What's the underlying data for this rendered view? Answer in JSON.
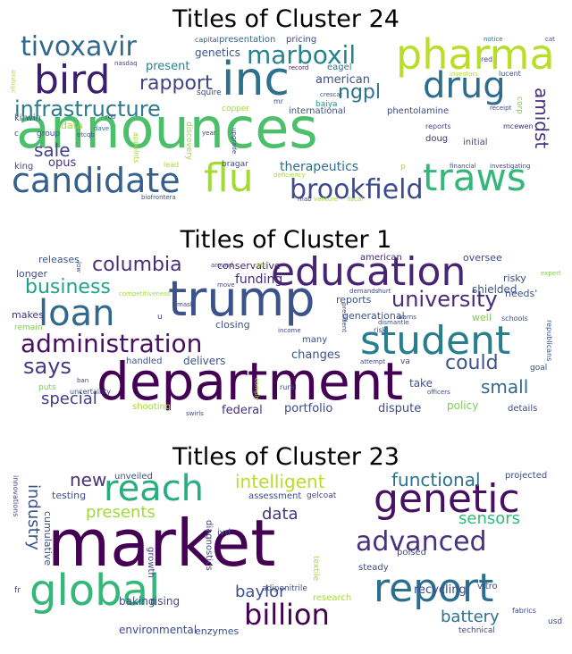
{
  "clouds": [
    {
      "title": "Titles of Cluster 24",
      "words": [
        {
          "text": "announces",
          "size": 62,
          "color": "#4cbf6b"
        },
        {
          "text": "inc",
          "size": 52,
          "color": "#2d708e"
        },
        {
          "text": "pharma",
          "size": 46,
          "color": "#b8de29"
        },
        {
          "text": "bird",
          "size": 44,
          "color": "#3b1f6c"
        },
        {
          "text": "drug",
          "size": 40,
          "color": "#2e6d8e"
        },
        {
          "text": "traws",
          "size": 42,
          "color": "#35b779"
        },
        {
          "text": "candidate",
          "size": 38,
          "color": "#34608d"
        },
        {
          "text": "flu",
          "size": 44,
          "color": "#a2da37"
        },
        {
          "text": "brookfield",
          "size": 30,
          "color": "#3e4a89"
        },
        {
          "text": "tivoxavir",
          "size": 30,
          "color": "#31688e"
        },
        {
          "text": "marboxil",
          "size": 28,
          "color": "#26828e"
        },
        {
          "text": "infrastructure",
          "size": 24,
          "color": "#2a7b8e"
        },
        {
          "text": "rapport",
          "size": 22,
          "color": "#414487"
        },
        {
          "text": "ngpl",
          "size": 22,
          "color": "#2c728e"
        },
        {
          "text": "amidst",
          "size": 20,
          "color": "#46327e"
        },
        {
          "text": "sale",
          "size": 20,
          "color": "#414487"
        },
        {
          "text": "therapeutics",
          "size": 14,
          "color": "#2e6e8e"
        },
        {
          "text": "opus",
          "size": 13,
          "color": "#46337e"
        },
        {
          "text": "present",
          "size": 13,
          "color": "#26828e"
        },
        {
          "text": "american",
          "size": 13,
          "color": "#3b528b"
        },
        {
          "text": "genetics",
          "size": 12,
          "color": "#39558c"
        },
        {
          "text": "presentation",
          "size": 10,
          "color": "#31688e"
        },
        {
          "text": "pricing",
          "size": 10,
          "color": "#3e4a89"
        },
        {
          "text": "eagel",
          "size": 10,
          "color": "#2a788e"
        },
        {
          "text": "data",
          "size": 11,
          "color": "#a0da39"
        },
        {
          "text": "group",
          "size": 9,
          "color": "#3b528b"
        },
        {
          "text": "king",
          "size": 10,
          "color": "#3e4a89"
        },
        {
          "text": "kirwin",
          "size": 10,
          "color": "#3b528b"
        },
        {
          "text": "international",
          "size": 10,
          "color": "#3b528b"
        },
        {
          "text": "phentolamine",
          "size": 10,
          "color": "#3e4a89"
        },
        {
          "text": "corp",
          "size": 9,
          "color": "#7ad151"
        },
        {
          "text": "doug",
          "size": 10,
          "color": "#46337e"
        },
        {
          "text": "initial",
          "size": 10,
          "color": "#3e4a89"
        },
        {
          "text": "mcewen",
          "size": 8,
          "color": "#46337e"
        },
        {
          "text": "reports",
          "size": 8,
          "color": "#414487"
        },
        {
          "text": "bragar",
          "size": 9,
          "color": "#3e4a89"
        },
        {
          "text": "copper",
          "size": 9,
          "color": "#9fda3a"
        },
        {
          "text": "baiya",
          "size": 9,
          "color": "#1f9e89"
        },
        {
          "text": "squire",
          "size": 9,
          "color": "#3e4a89"
        },
        {
          "text": "capital",
          "size": 8,
          "color": "#355f8d"
        },
        {
          "text": "nasdaq",
          "size": 7,
          "color": "#3e4a89"
        },
        {
          "text": "record",
          "size": 7,
          "color": "#481769"
        },
        {
          "text": "notice",
          "size": 7,
          "color": "#2e6e8e"
        },
        {
          "text": "cat",
          "size": 7,
          "color": "#3e4a89"
        },
        {
          "text": "red",
          "size": 8,
          "color": "#3e4a89"
        },
        {
          "text": "investors",
          "size": 7,
          "color": "#b8de29"
        },
        {
          "text": "lucent",
          "size": 8,
          "color": "#3b528b"
        },
        {
          "text": "receipt",
          "size": 7,
          "color": "#3e4a89"
        },
        {
          "text": "crescat",
          "size": 7,
          "color": "#39558c"
        },
        {
          "text": "strategic",
          "size": 6,
          "color": "#a5db36"
        },
        {
          "text": "otcqb",
          "size": 7,
          "color": "#3b528b"
        },
        {
          "text": "dave",
          "size": 7,
          "color": "#2e6e8e"
        },
        {
          "text": "rob",
          "size": 7,
          "color": "#3e4a89"
        },
        {
          "text": "appoints",
          "size": 8,
          "color": "#a5db36"
        },
        {
          "text": "discovery",
          "size": 9,
          "color": "#a0da39"
        },
        {
          "text": "lead",
          "size": 8,
          "color": "#a0da39"
        },
        {
          "text": "year",
          "size": 7,
          "color": "#3e4a89"
        },
        {
          "text": "upgrade",
          "size": 7,
          "color": "#3e4a89"
        },
        {
          "text": "deficiency",
          "size": 7,
          "color": "#a5db36"
        },
        {
          "text": "biofrontera",
          "size": 7,
          "color": "#3b528b"
        },
        {
          "text": "mab",
          "size": 7,
          "color": "#3e4a89"
        },
        {
          "text": "venture",
          "size": 7,
          "color": "#a5db36"
        },
        {
          "text": "fiscal",
          "size": 7,
          "color": "#9fda3a"
        },
        {
          "text": "financial",
          "size": 7,
          "color": "#3e4a89"
        },
        {
          "text": "investigating",
          "size": 7,
          "color": "#3e4a89"
        },
        {
          "text": "p",
          "size": 9,
          "color": "#9fda3a"
        },
        {
          "text": "c",
          "size": 9,
          "color": "#3b528b"
        },
        {
          "text": "mr",
          "size": 8,
          "color": "#3b528b"
        }
      ]
    },
    {
      "title": "Titles of Cluster 1",
      "words": [
        {
          "text": "department",
          "size": 58,
          "color": "#440154"
        },
        {
          "text": "trump",
          "size": 54,
          "color": "#3b528b"
        },
        {
          "text": "education",
          "size": 44,
          "color": "#482475"
        },
        {
          "text": "student",
          "size": 44,
          "color": "#277f8e"
        },
        {
          "text": "loan",
          "size": 40,
          "color": "#31688e"
        },
        {
          "text": "administration",
          "size": 28,
          "color": "#471063"
        },
        {
          "text": "university",
          "size": 24,
          "color": "#472d7b"
        },
        {
          "text": "columbia",
          "size": 22,
          "color": "#46307e"
        },
        {
          "text": "business",
          "size": 22,
          "color": "#20a386"
        },
        {
          "text": "says",
          "size": 24,
          "color": "#443b84"
        },
        {
          "text": "could",
          "size": 22,
          "color": "#3b528b"
        },
        {
          "text": "small",
          "size": 20,
          "color": "#31688e"
        },
        {
          "text": "special",
          "size": 18,
          "color": "#433e85"
        },
        {
          "text": "funding",
          "size": 14,
          "color": "#472c7a"
        },
        {
          "text": "changes",
          "size": 13,
          "color": "#3b528b"
        },
        {
          "text": "reports",
          "size": 11,
          "color": "#3b528b"
        },
        {
          "text": "releases",
          "size": 11,
          "color": "#39568c"
        },
        {
          "text": "conservative",
          "size": 11,
          "color": "#481f70"
        },
        {
          "text": "american",
          "size": 10,
          "color": "#482878"
        },
        {
          "text": "oversee",
          "size": 11,
          "color": "#3e4a89"
        },
        {
          "text": "risky",
          "size": 11,
          "color": "#3e4a89"
        },
        {
          "text": "needs'",
          "size": 11,
          "color": "#3b528b"
        },
        {
          "text": "shielded",
          "size": 12,
          "color": "#3b528b"
        },
        {
          "text": "generational",
          "size": 11,
          "color": "#3b528b"
        },
        {
          "text": "longer",
          "size": 11,
          "color": "#3e4a89"
        },
        {
          "text": "makes",
          "size": 11,
          "color": "#46337e"
        },
        {
          "text": "remain",
          "size": 9,
          "color": "#7ad151"
        },
        {
          "text": "closing",
          "size": 11,
          "color": "#3b528b"
        },
        {
          "text": "handled",
          "size": 10,
          "color": "#3b528b"
        },
        {
          "text": "delivers",
          "size": 12,
          "color": "#3b528b"
        },
        {
          "text": "federal",
          "size": 13,
          "color": "#46327e"
        },
        {
          "text": "portfolio",
          "size": 13,
          "color": "#3e4a89"
        },
        {
          "text": "dispute",
          "size": 13,
          "color": "#3e4a89"
        },
        {
          "text": "policy",
          "size": 12,
          "color": "#7ad151"
        },
        {
          "text": "details",
          "size": 10,
          "color": "#3e4a89"
        },
        {
          "text": "take",
          "size": 12,
          "color": "#3b528b"
        },
        {
          "text": "well",
          "size": 11,
          "color": "#7ad151"
        },
        {
          "text": "schools",
          "size": 8,
          "color": "#3b528b"
        },
        {
          "text": "goal",
          "size": 9,
          "color": "#3b528b"
        },
        {
          "text": "republicans",
          "size": 8,
          "color": "#3b528b"
        },
        {
          "text": "puts",
          "size": 9,
          "color": "#7ad151"
        },
        {
          "text": "shooting",
          "size": 10,
          "color": "#a5db36"
        },
        {
          "text": "uncertainty",
          "size": 8,
          "color": "#3e4a89"
        },
        {
          "text": "ban",
          "size": 7,
          "color": "#3e4a89"
        },
        {
          "text": "swirls",
          "size": 7,
          "color": "#3e4a89"
        },
        {
          "text": "comply",
          "size": 7,
          "color": "#a5db36"
        },
        {
          "text": "rural",
          "size": 8,
          "color": "#3e4a89"
        },
        {
          "text": "officers",
          "size": 7,
          "color": "#3e4a89"
        },
        {
          "text": "attempt",
          "size": 7,
          "color": "#3e4a89"
        },
        {
          "text": "many",
          "size": 10,
          "color": "#3e4a89"
        },
        {
          "text": "income",
          "size": 7,
          "color": "#3e4a89"
        },
        {
          "text": "risk",
          "size": 8,
          "color": "#3e4a89"
        },
        {
          "text": "va",
          "size": 9,
          "color": "#3e4a89"
        },
        {
          "text": "president",
          "size": 7,
          "color": "#3e4a89"
        },
        {
          "text": "dismantle",
          "size": 7,
          "color": "#3e4a89"
        },
        {
          "text": "demands",
          "size": 7,
          "color": "#3e4a89"
        },
        {
          "text": "hurt",
          "size": 7,
          "color": "#3e4a89"
        },
        {
          "text": "warns",
          "size": 7,
          "color": "#3e4a89"
        },
        {
          "text": "move",
          "size": 7,
          "color": "#3e4a89"
        },
        {
          "text": "mask",
          "size": 7,
          "color": "#3e4a89"
        },
        {
          "text": "competitiveness'",
          "size": 7,
          "color": "#a5db36"
        },
        {
          "text": "around",
          "size": 7,
          "color": "#3e4a89"
        },
        {
          "text": "cuts",
          "size": 7,
          "color": "#a5db36"
        },
        {
          "text": "low",
          "size": 7,
          "color": "#3e4a89"
        },
        {
          "text": "expert",
          "size": 7,
          "color": "#7ad151"
        },
        {
          "text": "u",
          "size": 9,
          "color": "#3e4a89"
        }
      ]
    },
    {
      "title": "Titles of Cluster 23",
      "words": [
        {
          "text": "market",
          "size": 72,
          "color": "#440154"
        },
        {
          "text": "global",
          "size": 48,
          "color": "#35b779"
        },
        {
          "text": "genetic",
          "size": 44,
          "color": "#471063"
        },
        {
          "text": "report",
          "size": 44,
          "color": "#2c6e8e"
        },
        {
          "text": "reach",
          "size": 40,
          "color": "#27ad81"
        },
        {
          "text": "advanced",
          "size": 30,
          "color": "#46327e"
        },
        {
          "text": "billion",
          "size": 32,
          "color": "#440154"
        },
        {
          "text": "intelligent",
          "size": 20,
          "color": "#b8de29"
        },
        {
          "text": "functional",
          "size": 20,
          "color": "#2c728e"
        },
        {
          "text": "industry",
          "size": 18,
          "color": "#3b528b"
        },
        {
          "text": "sensors",
          "size": 18,
          "color": "#35b779"
        },
        {
          "text": "battery",
          "size": 18,
          "color": "#2c728e"
        },
        {
          "text": "presents",
          "size": 18,
          "color": "#a0da39"
        },
        {
          "text": "new",
          "size": 20,
          "color": "#46337e"
        },
        {
          "text": "data",
          "size": 18,
          "color": "#46337e"
        },
        {
          "text": "baylor",
          "size": 18,
          "color": "#3b528b"
        },
        {
          "text": "recycling",
          "size": 13,
          "color": "#3e4a89"
        },
        {
          "text": "environmental",
          "size": 12,
          "color": "#3e4a89"
        },
        {
          "text": "enzymes",
          "size": 11,
          "color": "#3b528b"
        },
        {
          "text": "baking",
          "size": 12,
          "color": "#3e4a89"
        },
        {
          "text": "rising",
          "size": 12,
          "color": "#3e4a89"
        },
        {
          "text": "cumulative",
          "size": 11,
          "color": "#3e4a89"
        },
        {
          "text": "testing",
          "size": 11,
          "color": "#3b528b"
        },
        {
          "text": "unveiled",
          "size": 10,
          "color": "#3b528b"
        },
        {
          "text": "assessment",
          "size": 10,
          "color": "#3e4a89"
        },
        {
          "text": "projected",
          "size": 10,
          "color": "#3e4a89"
        },
        {
          "text": "gelcoat",
          "size": 9,
          "color": "#3e4a89"
        },
        {
          "text": "poised",
          "size": 10,
          "color": "#3e4a89"
        },
        {
          "text": "steady",
          "size": 10,
          "color": "#3e4a89"
        },
        {
          "text": "vitro",
          "size": 10,
          "color": "#3e4a89"
        },
        {
          "text": "adiponitrile",
          "size": 9,
          "color": "#3e4a89"
        },
        {
          "text": "research",
          "size": 10,
          "color": "#a5db36"
        },
        {
          "text": "fabrics",
          "size": 8,
          "color": "#3e4a89"
        },
        {
          "text": "technical",
          "size": 9,
          "color": "#3e4a89"
        },
        {
          "text": "usd",
          "size": 9,
          "color": "#3e4a89"
        },
        {
          "text": "ivd",
          "size": 10,
          "color": "#3e4a89"
        },
        {
          "text": "diagnostics",
          "size": 10,
          "color": "#3e4a89"
        },
        {
          "text": "growth",
          "size": 10,
          "color": "#3e4a89"
        },
        {
          "text": "textile",
          "size": 9,
          "color": "#a5db36"
        },
        {
          "text": "innovations",
          "size": 8,
          "color": "#3e4a89"
        },
        {
          "text": "fr",
          "size": 9,
          "color": "#3e4a89"
        }
      ]
    }
  ]
}
